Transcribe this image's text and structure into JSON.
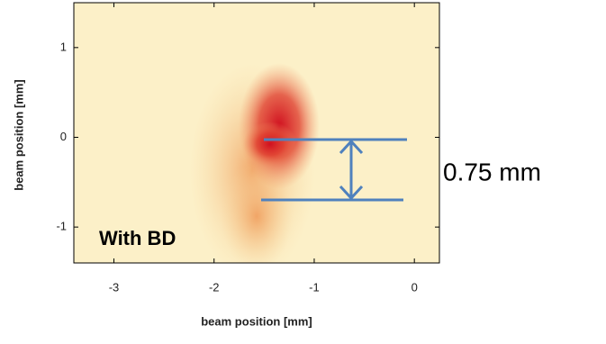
{
  "chart_data": {
    "type": "heatmap",
    "x_label": "beam position [mm]",
    "y_label": "beam position [mm]",
    "xlim": [
      -3.4,
      0.25
    ],
    "ylim": [
      -1.4,
      1.5
    ],
    "xticks": [
      -3,
      -2,
      -1,
      0
    ],
    "yticks": [
      -1,
      0,
      1
    ],
    "annotations": [
      "With BD",
      "0.75 mm"
    ]
  }
}
